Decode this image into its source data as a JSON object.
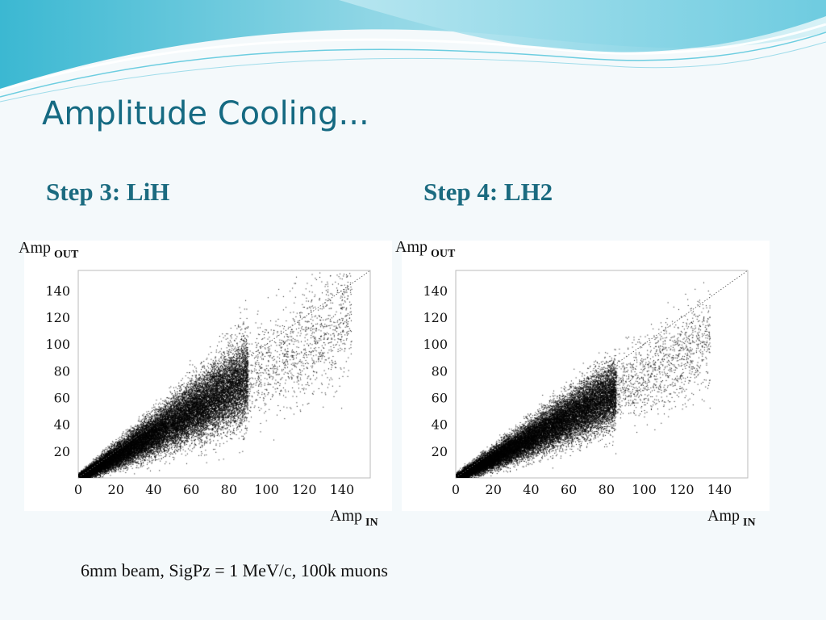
{
  "slide": {
    "title": "Amplitude Cooling...",
    "caption": "6mm beam, SigPz = 1 MeV/c, 100k muons"
  },
  "colors": {
    "title": "#156a82",
    "step": "#1b6b80",
    "banner_light": "#d8f2f7",
    "banner_mid": "#8fd6e5",
    "banner_dark": "#3bb8d2"
  },
  "chart_data": [
    {
      "type": "scatter",
      "step_label": "Step 3: LiH",
      "ylabel_main": "Amp",
      "ylabel_sub": "OUT",
      "xlabel_main": "Amp",
      "xlabel_sub": "IN",
      "xlim": [
        0,
        155
      ],
      "ylim": [
        0,
        155
      ],
      "xticks": [
        "0",
        "20",
        "40",
        "60",
        "80",
        "100",
        "120",
        "140"
      ],
      "yticks": [
        "20",
        "40",
        "60",
        "80",
        "100",
        "120",
        "140"
      ],
      "reference_line": "y = x (dotted)",
      "n_points": 100000,
      "distribution": {
        "slope": 0.83,
        "spread_fraction": 0.16,
        "bulk_range": [
          0,
          90
        ],
        "tail_to": 145
      }
    },
    {
      "type": "scatter",
      "step_label": "Step 4: LH2",
      "ylabel_main": "Amp",
      "ylabel_sub": "OUT",
      "xlabel_main": "Amp",
      "xlabel_sub": "IN",
      "xlim": [
        0,
        155
      ],
      "ylim": [
        0,
        155
      ],
      "xticks": [
        "0",
        "20",
        "40",
        "60",
        "80",
        "100",
        "120",
        "140"
      ],
      "yticks": [
        "20",
        "40",
        "60",
        "80",
        "100",
        "120",
        "140"
      ],
      "reference_line": "y = x (dotted)",
      "n_points": 100000,
      "distribution": {
        "slope": 0.76,
        "spread_fraction": 0.13,
        "bulk_range": [
          0,
          85
        ],
        "tail_to": 135
      }
    }
  ]
}
